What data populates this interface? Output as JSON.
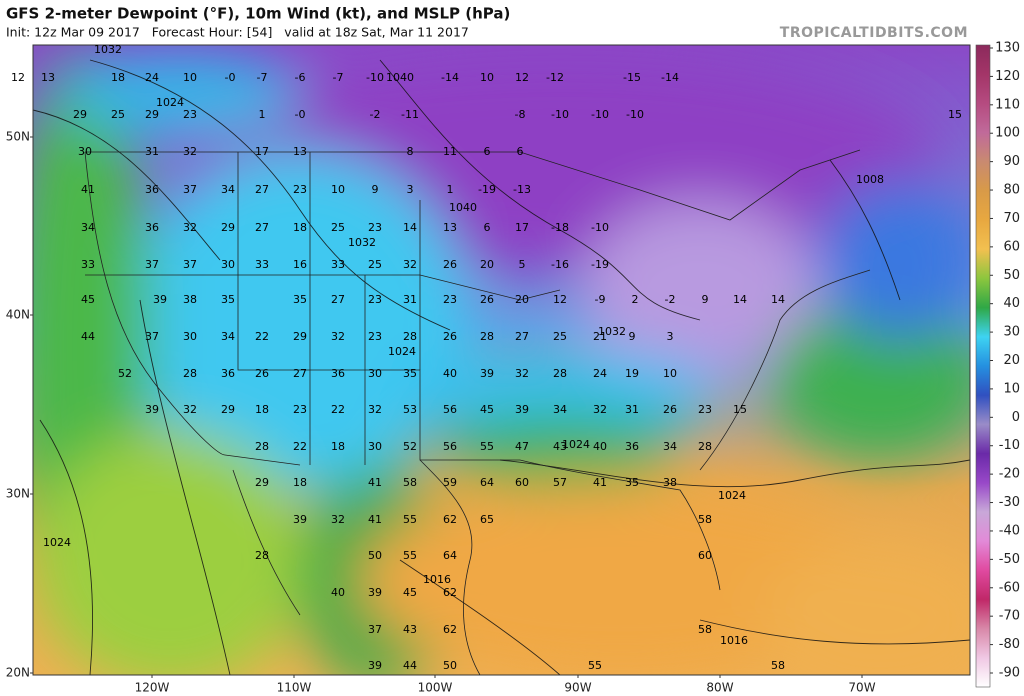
{
  "header": {
    "title": "GFS 2-meter Dewpoint (°F), 10m Wind (kt), and MSLP (hPa)",
    "subtitle": "Init: 12z Mar 09 2017   Forecast Hour: [54]   valid at 18z Sat, Mar 11 2017",
    "brand": "TROPICALTIDBITS.COM"
  },
  "map": {
    "lat_labels": [
      "50N",
      "40N",
      "30N",
      "20N"
    ],
    "lon_labels": [
      "120W",
      "110W",
      "100W",
      "90W",
      "80W",
      "70W"
    ],
    "dewpoints": [
      [
        "12",
        "13",
        "18",
        "24",
        "10",
        "-0",
        "-7",
        "-6",
        "-7",
        "-10",
        "-14",
        "10",
        "12",
        "-12",
        "-15",
        "-14"
      ],
      [
        "29",
        "25",
        "29",
        "23",
        "1",
        "-0",
        "-2",
        "-11",
        "-8",
        "-10",
        "-10",
        "-10",
        "15"
      ],
      [
        "30",
        "31",
        "32",
        "17",
        "13",
        "8",
        "11",
        "6",
        "6"
      ],
      [
        "41",
        "36",
        "37",
        "34",
        "27",
        "23",
        "10",
        "9",
        "3",
        "1",
        "-19",
        "-13"
      ],
      [
        "34",
        "36",
        "32",
        "29",
        "27",
        "18",
        "25",
        "23",
        "14",
        "13",
        "6",
        "17",
        "-18",
        "-10"
      ],
      [
        "33",
        "37",
        "37",
        "30",
        "33",
        "16",
        "33",
        "25",
        "32",
        "26",
        "20",
        "5",
        "-16",
        "-19"
      ],
      [
        "45",
        "39",
        "38",
        "35",
        "35",
        "27",
        "23",
        "31",
        "23",
        "26",
        "20",
        "12",
        "-9",
        "2",
        "-2",
        "9",
        "14",
        "14"
      ],
      [
        "44",
        "37",
        "30",
        "34",
        "22",
        "29",
        "32",
        "23",
        "28",
        "26",
        "28",
        "27",
        "25",
        "21",
        "9",
        "3"
      ],
      [
        "52",
        "28",
        "36",
        "26",
        "27",
        "36",
        "30",
        "35",
        "40",
        "39",
        "32",
        "28",
        "24",
        "19",
        "10"
      ],
      [
        "39",
        "32",
        "29",
        "18",
        "23",
        "22",
        "32",
        "53",
        "56",
        "45",
        "39",
        "34",
        "32",
        "31",
        "26",
        "23",
        "15"
      ],
      [
        "28",
        "22",
        "18",
        "30",
        "52",
        "56",
        "55",
        "47",
        "43",
        "40",
        "36",
        "34",
        "28"
      ],
      [
        "29",
        "18",
        "41",
        "58",
        "59",
        "64",
        "60",
        "57",
        "41",
        "35",
        "38"
      ],
      [
        "39",
        "32",
        "41",
        "55",
        "62",
        "65",
        "58"
      ],
      [
        "28",
        "50",
        "55",
        "64",
        "60"
      ],
      [
        "40",
        "39",
        "45",
        "62"
      ],
      [
        "37",
        "43",
        "62",
        "58"
      ],
      [
        "39",
        "44",
        "50",
        "55",
        "58"
      ]
    ],
    "isobar_labels": [
      "1032",
      "1024",
      "1040",
      "1040",
      "1032",
      "1032",
      "1024",
      "1024",
      "1024",
      "1024",
      "1016",
      "1016",
      "1008"
    ]
  },
  "colorbar": {
    "ticks": [
      130,
      120,
      110,
      100,
      90,
      80,
      70,
      60,
      50,
      40,
      30,
      20,
      10,
      0,
      -10,
      -20,
      -30,
      -40,
      -50,
      -60,
      -70,
      -80,
      -90
    ],
    "colors": [
      "#8c2a5c",
      "#a33568",
      "#b54b80",
      "#c06a9a",
      "#c98a70",
      "#d89a48",
      "#e8a840",
      "#f2c050",
      "#8cc63e",
      "#2fa846",
      "#3ed3f2",
      "#2590e0",
      "#3050c0",
      "#9a8cc8",
      "#6a2aa8",
      "#9848c8",
      "#c8a8d8",
      "#e28ad8",
      "#e04aa0",
      "#c02868",
      "#d888a8",
      "#f0c8e4",
      "#ffffff"
    ],
    "clim": [
      -90,
      130
    ]
  }
}
